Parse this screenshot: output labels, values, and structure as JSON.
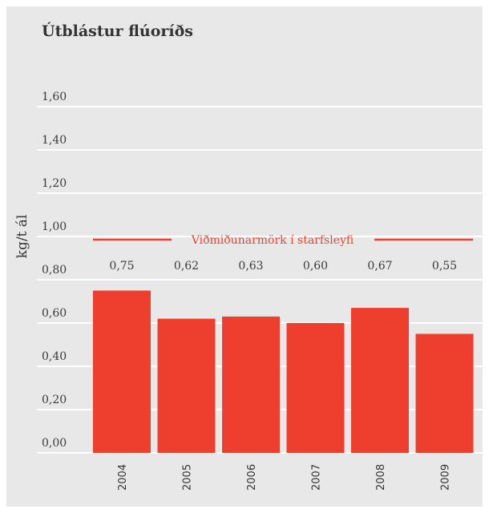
{
  "chart_data": {
    "type": "bar",
    "title": "Útblástur flúoríðs",
    "ylabel": "kg/t ál",
    "xlabel": "",
    "categories": [
      "2004",
      "2005",
      "2006",
      "2007",
      "2008",
      "2009"
    ],
    "values": [
      0.75,
      0.62,
      0.63,
      0.6,
      0.67,
      0.55
    ],
    "value_labels": [
      "0,75",
      "0,62",
      "0,63",
      "0,60",
      "0,67",
      "0,55"
    ],
    "yticks": [
      0.0,
      0.2,
      0.4,
      0.6,
      0.8,
      1.0,
      1.2,
      1.4,
      1.6
    ],
    "ytick_labels": [
      "0,00",
      "0,20",
      "0,40",
      "0,60",
      "0,80",
      "1,00",
      "1,20",
      "1,40",
      "1,60"
    ],
    "ylim": [
      0,
      1.6
    ],
    "grid": true,
    "reference_line": {
      "value": 1.0,
      "label": "Viðmiðunarmörk í starfsleyfi"
    },
    "colors": {
      "bar": "#ee3e2e",
      "reference": "#e8432f",
      "grid": "#ffffff",
      "background": "#e8e8e8"
    }
  }
}
